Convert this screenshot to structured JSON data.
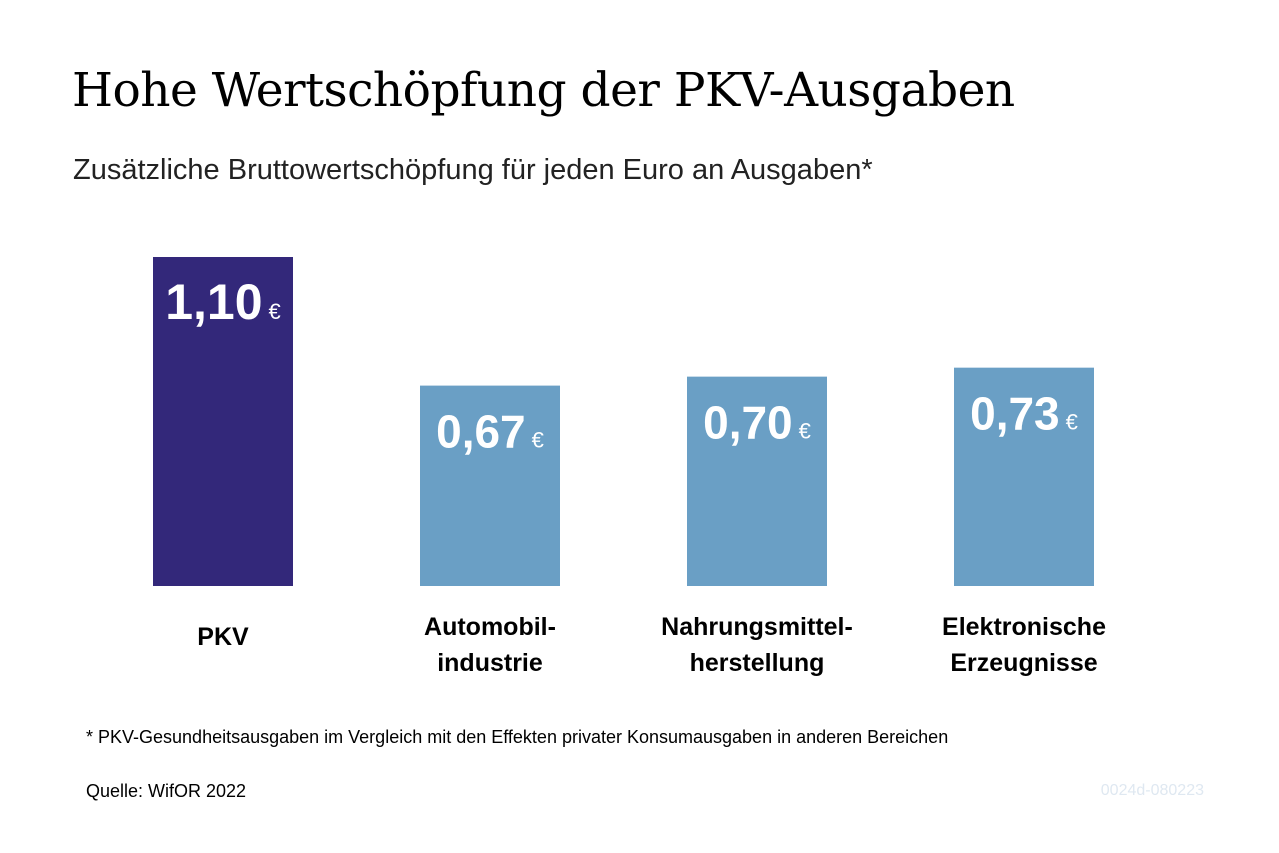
{
  "title": "Hohe Wertschöpfung der PKV-Ausgaben",
  "subtitle": "Zusätzliche Bruttowertschöpfung für jeden Euro an Ausgaben*",
  "footnote": "* PKV-Gesundheitsausgaben im Vergleich mit den Effekten privater Konsumausgaben in anderen Bereichen",
  "source": "Quelle: WifOR 2022",
  "code": "0024d-080223",
  "chart_data": {
    "type": "bar",
    "title": "Hohe Wertschöpfung der PKV-Ausgaben",
    "subtitle": "Zusätzliche Bruttowertschöpfung für jeden Euro an Ausgaben*",
    "categories": [
      [
        "PKV"
      ],
      [
        "Automobil-",
        "industrie"
      ],
      [
        "Nahrungsmittel-",
        "herstellung"
      ],
      [
        "Elektronische",
        "Erzeugnisse"
      ]
    ],
    "values": [
      1.1,
      0.67,
      0.7,
      0.73
    ],
    "value_labels": [
      "1,10",
      "0,67",
      "0,70",
      "0,73"
    ],
    "unit": "€",
    "colors": [
      "#33287a",
      "#6a9fc5",
      "#6a9fc5",
      "#6a9fc5"
    ],
    "ylim": [
      0,
      1.1
    ],
    "grid": false,
    "legend": "none"
  }
}
